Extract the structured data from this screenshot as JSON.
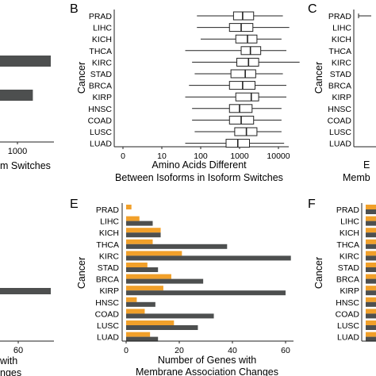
{
  "chart_data": [
    {
      "panel": "A",
      "type": "bar",
      "partial": true,
      "xticks": [
        "1000"
      ],
      "xlabel_fragment": "m Switches",
      "ylabel": "",
      "bars": [
        {
          "value": 1700,
          "color": "#4d4f4f"
        },
        {
          "value": 1100,
          "color": "#4d4f4f"
        }
      ]
    },
    {
      "panel": "B",
      "type": "boxplot",
      "scale": "log10",
      "ylabel": "Cancer",
      "xlabel": [
        "Amino Acids Different",
        "Between Isoforms in Isoform Switches"
      ],
      "xticks": [
        "0",
        "10",
        "100",
        "1000",
        "10000"
      ],
      "categories": [
        "PRAD",
        "LIHC",
        "KICH",
        "THCA",
        "KIRC",
        "STAD",
        "BRCA",
        "KIRP",
        "HNSC",
        "COAD",
        "LUSC",
        "LUAD"
      ],
      "boxes": [
        {
          "min": 8,
          "q1": 70,
          "median": 120,
          "q3": 230,
          "max": 1300
        },
        {
          "min": 8,
          "q1": 55,
          "median": 110,
          "q3": 220,
          "max": 1900
        },
        {
          "min": 10,
          "q1": 80,
          "median": 160,
          "q3": 280,
          "max": 1200
        },
        {
          "min": 4,
          "q1": 110,
          "median": 190,
          "q3": 350,
          "max": 1600
        },
        {
          "min": 6,
          "q1": 85,
          "median": 170,
          "q3": 310,
          "max": 3500
        },
        {
          "min": 7,
          "q1": 60,
          "median": 140,
          "q3": 260,
          "max": 1300
        },
        {
          "min": 5,
          "q1": 55,
          "median": 120,
          "q3": 250,
          "max": 1600
        },
        {
          "min": 4,
          "q1": 80,
          "median": 200,
          "q3": 310,
          "max": 1600
        },
        {
          "min": 6,
          "q1": 55,
          "median": 100,
          "q3": 210,
          "max": 1200
        },
        {
          "min": 6,
          "q1": 55,
          "median": 110,
          "q3": 230,
          "max": 1200
        },
        {
          "min": 7,
          "q1": 75,
          "median": 150,
          "q3": 280,
          "max": 1200
        },
        {
          "min": 4,
          "q1": 45,
          "median": 90,
          "q3": 180,
          "max": 1400
        }
      ]
    },
    {
      "panel": "C",
      "type": "boxplot",
      "partial": true,
      "ylabel": "Cancer",
      "xlabel_fragments": [
        "E",
        "Memb"
      ],
      "categories": [
        "PRAD",
        "LIHC",
        "KICH",
        "THCA",
        "KIRC",
        "STAD",
        "BRCA",
        "KIRP",
        "HNSC",
        "COAD",
        "LUSC",
        "LUAD"
      ]
    },
    {
      "panel": "D",
      "type": "bar",
      "partial": true,
      "xticks": [
        "60"
      ],
      "xlabel_fragments": [
        "with",
        "nges"
      ],
      "bars": [
        {
          "value": 65,
          "color": "#4d4f4f"
        }
      ]
    },
    {
      "panel": "E",
      "type": "bar",
      "orientation": "horizontal",
      "ylabel": "Cancer",
      "xlabel": [
        "Number of Genes with",
        "Membrane Association Changes"
      ],
      "xticks": [
        "0",
        "20",
        "40",
        "60"
      ],
      "xlim": [
        0,
        64
      ],
      "categories": [
        "PRAD",
        "LIHC",
        "KICH",
        "THCA",
        "KIRC",
        "STAD",
        "BRCA",
        "KIRP",
        "HNSC",
        "COAD",
        "LUSC",
        "LUAD"
      ],
      "series": [
        {
          "color": "#f1a02a",
          "values": [
            2,
            5,
            13,
            10,
            21,
            8,
            17,
            14,
            4,
            7,
            18,
            9
          ]
        },
        {
          "color": "#4d4f4f",
          "values": [
            0,
            10,
            13,
            38,
            62,
            12,
            29,
            60,
            11,
            33,
            27,
            12
          ]
        }
      ]
    },
    {
      "panel": "F",
      "type": "bar",
      "partial": true,
      "ylabel": "Cancer",
      "categories": [
        "PRAD",
        "LIHC",
        "KICH",
        "THCA",
        "KIRC",
        "STAD",
        "BRCA",
        "KIRP",
        "HNSC",
        "COAD",
        "LUSC",
        "LUAD"
      ]
    }
  ]
}
